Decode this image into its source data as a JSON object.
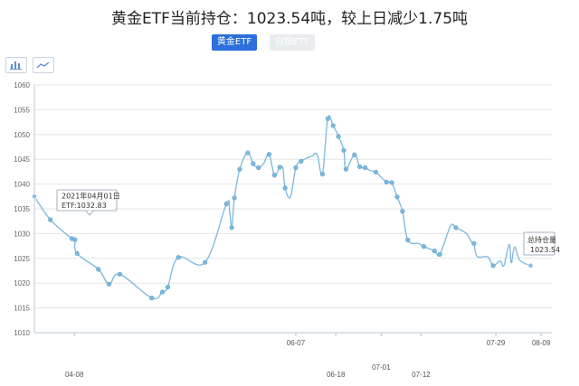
{
  "header": {
    "title": "黄金ETF当前持仓：1023.54吨，较上日减少1.75吨",
    "tabs": [
      {
        "label": "黄金ETF",
        "active": true
      },
      {
        "label": "白银ETF",
        "active": false
      }
    ]
  },
  "toolbar": {
    "bar_view_icon": "bar-chart-icon",
    "line_view_icon": "line-chart-icon"
  },
  "tooltip_start": {
    "line1": "2021年04月01日",
    "line2": "ETF:1032.83"
  },
  "tooltip_end": {
    "line1": "总持仓量",
    "line2": "1023.54"
  },
  "colors": {
    "accent": "#2a6fdb",
    "series": "#7ab8dc",
    "grid": "#e6e6e6"
  },
  "chart_data": {
    "type": "line",
    "title": "",
    "xlabel": "",
    "ylabel": "",
    "ylim": [
      1010,
      1060
    ],
    "yticks": [
      1010,
      1015,
      1020,
      1025,
      1030,
      1035,
      1040,
      1045,
      1050,
      1055,
      1060
    ],
    "x_range": [
      0,
      97
    ],
    "x_tick_labels": [
      {
        "x": 7.5,
        "label": "04-08",
        "row": 2
      },
      {
        "x": 49,
        "label": "06-07",
        "row": 1
      },
      {
        "x": 56.5,
        "label": "06-18",
        "row": 2
      },
      {
        "x": 65,
        "label": "07-01",
        "row": 3
      },
      {
        "x": 72.5,
        "label": "07-12",
        "row": 2
      },
      {
        "x": 86.5,
        "label": "07-29",
        "row": 1
      },
      {
        "x": 95,
        "label": "08-09",
        "row": 1
      }
    ],
    "grid": true,
    "series": [
      {
        "x": [
          0,
          3,
          7,
          7.6,
          8,
          12,
          14,
          16,
          22,
          24,
          25,
          27,
          32,
          36,
          36.6,
          37,
          37.5,
          38.5,
          40,
          41,
          42,
          43,
          44,
          45,
          46,
          46.6,
          47,
          48,
          49,
          50,
          51,
          52,
          53,
          54,
          55,
          56,
          57,
          58,
          58.4,
          60,
          61,
          62,
          63,
          64,
          66,
          67,
          68,
          69,
          70,
          72,
          73,
          75,
          76,
          78,
          79,
          81,
          82,
          82.4,
          83,
          85,
          86,
          87.3,
          88,
          89,
          89.4,
          90,
          91,
          93
        ],
        "values": [
          1037.5,
          1032.8,
          1029,
          1028.8,
          1026,
          1022.8,
          1019.8,
          1021.8,
          1017,
          1018.2,
          1019.2,
          1025.2,
          1024.2,
          1036,
          1034.5,
          1031.2,
          1037.2,
          1043,
          1046.3,
          1044.1,
          1043.3,
          1044.2,
          1046,
          1041.8,
          1043.4,
          1043.1,
          1039.2,
          1037.4,
          1043.3,
          1044.6,
          1045.2,
          1045.6,
          1046,
          1042,
          1053.2,
          1051.8,
          1049.6,
          1046.8,
          1043,
          1045.9,
          1043.5,
          1043.3,
          1042.7,
          1042.4,
          1040.4,
          1040.3,
          1037.4,
          1034.5,
          1028.7,
          1028,
          1027.4,
          1026.5,
          1025.8,
          1031.5,
          1031.2,
          1030,
          1028.2,
          1028,
          1025.4,
          1025.3,
          1023.54,
          1024.5,
          1023.5,
          1027.8,
          1024.1,
          1027.3,
          1024.6,
          1023.54
        ],
        "markers": [
          0,
          1,
          2,
          3,
          4,
          5,
          6,
          7,
          8,
          9,
          10,
          11,
          12,
          13,
          15,
          16,
          17,
          18,
          19,
          20,
          22,
          23,
          24,
          26,
          28,
          29,
          33,
          34,
          35,
          36,
          37,
          38,
          39,
          40,
          41,
          43,
          44,
          45,
          46,
          47,
          48,
          50,
          51,
          52,
          54,
          57,
          60
        ]
      }
    ]
  }
}
